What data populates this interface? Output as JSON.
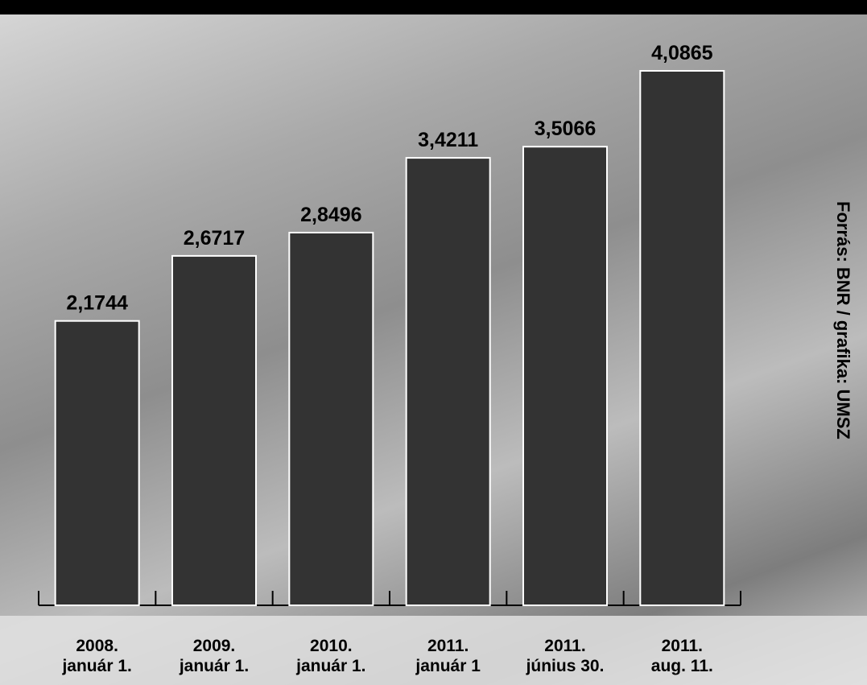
{
  "chart_data": {
    "type": "bar",
    "categories": [
      "2008.\njanuár 1.",
      "2009.\njanuár 1.",
      "2010.\njanuár 1.",
      "2011.\njanuár 1",
      "2011.\njúnius 30.",
      "2011.\naug. 11."
    ],
    "values": [
      2.1744,
      2.6717,
      2.8496,
      3.4211,
      3.5066,
      4.0865
    ],
    "value_labels": [
      "2,1744",
      "2,6717",
      "2,8496",
      "3,4211",
      "3,5066",
      "4,0865"
    ],
    "color": "#333333",
    "source": "Forrás: BNR / grafika: UMSZ"
  }
}
